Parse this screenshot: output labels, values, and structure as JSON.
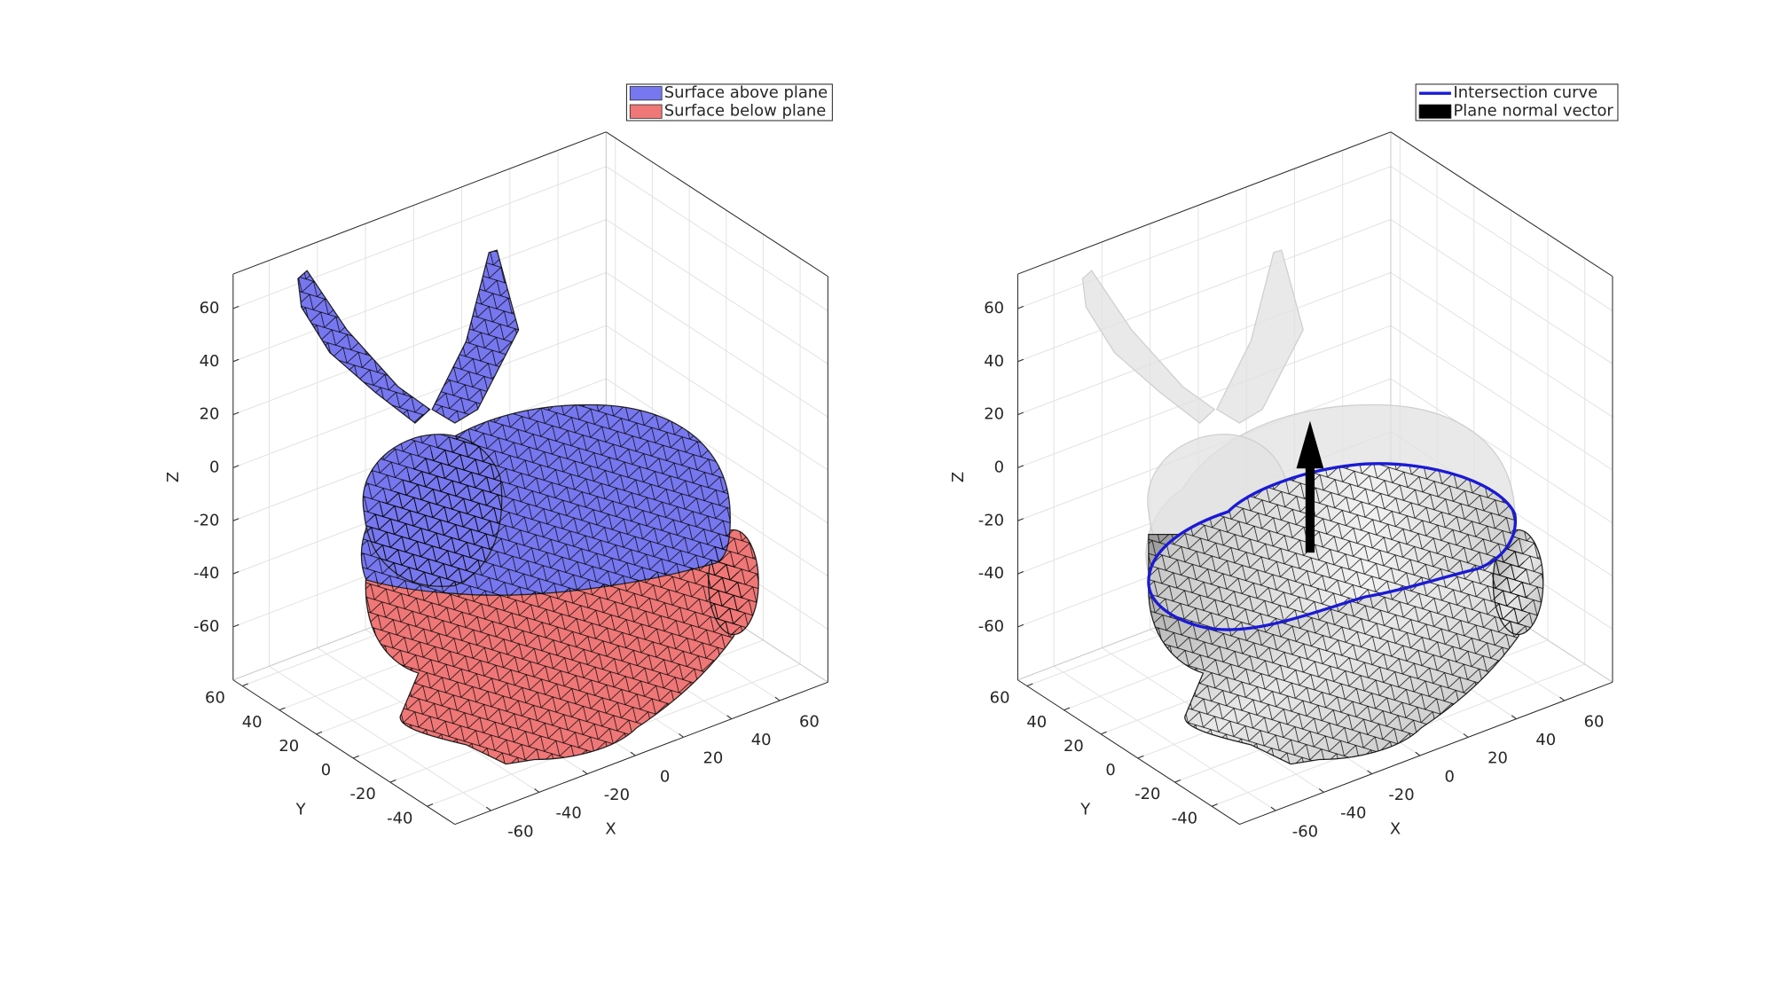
{
  "chart_data": [
    {
      "type": "mesh3d",
      "xlabel": "X",
      "ylabel": "Y",
      "zlabel": "Z",
      "xlim": [
        -75,
        80
      ],
      "ylim": [
        -55,
        65
      ],
      "zlim": [
        -80,
        73
      ],
      "xticks": [
        -60,
        -40,
        -20,
        0,
        20,
        40,
        60
      ],
      "yticks": [
        -40,
        -20,
        0,
        20,
        40,
        60
      ],
      "zticks": [
        -60,
        -40,
        -20,
        0,
        20,
        40,
        60
      ],
      "grid": true,
      "legend": "upper right",
      "series": [
        {
          "name": "Surface above plane",
          "color": "#7777f0",
          "marker": "patch"
        },
        {
          "name": "Surface below plane",
          "color": "#f07777",
          "marker": "patch"
        }
      ]
    },
    {
      "type": "mesh3d",
      "xlabel": "X",
      "ylabel": "Y",
      "zlabel": "Z",
      "xlim": [
        -75,
        80
      ],
      "ylim": [
        -55,
        65
      ],
      "zlim": [
        -80,
        73
      ],
      "xticks": [
        -60,
        -40,
        -20,
        0,
        20,
        40,
        60
      ],
      "yticks": [
        -40,
        -20,
        0,
        20,
        40,
        60
      ],
      "zticks": [
        -60,
        -40,
        -20,
        0,
        20,
        40,
        60
      ],
      "grid": true,
      "legend": "upper right",
      "series": [
        {
          "name": "Intersection curve",
          "color": "#1a1ad6",
          "marker": "line"
        },
        {
          "name": "Plane normal vector",
          "color": "#000000",
          "marker": "patch"
        }
      ]
    }
  ]
}
